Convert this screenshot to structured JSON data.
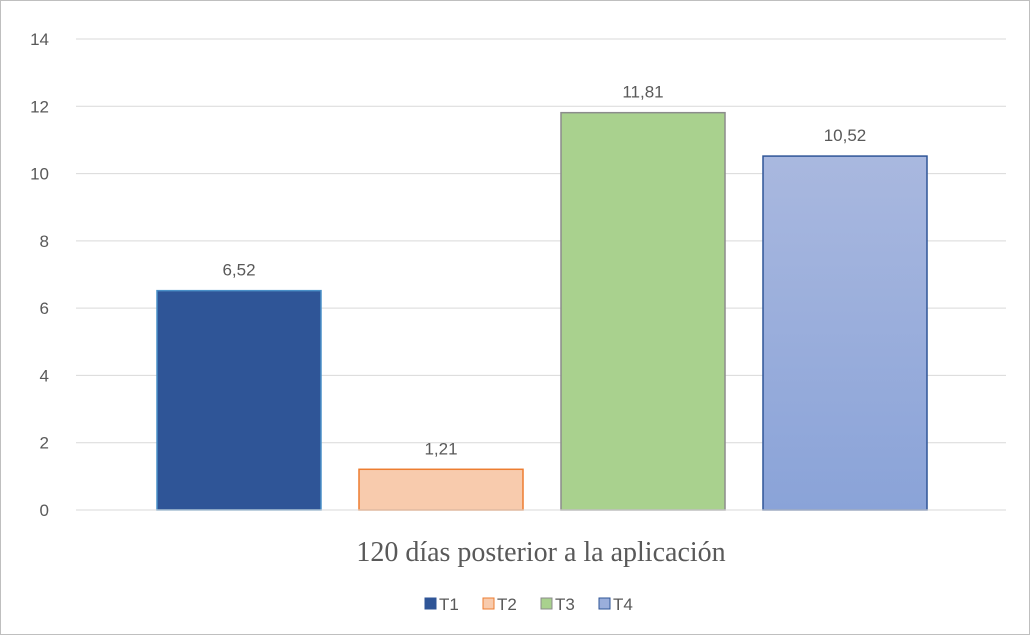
{
  "chart_data": {
    "type": "bar",
    "category_label": "120 días posterior a la aplicación",
    "series": [
      {
        "name": "T1",
        "value": 6.52,
        "label": "6,52",
        "color": "#2f5597"
      },
      {
        "name": "T2",
        "value": 1.21,
        "label": "1,21",
        "color": "#f8cbad",
        "stroke": "#ed7d31"
      },
      {
        "name": "T3",
        "value": 11.81,
        "label": "11,81",
        "color": "#a9d18e"
      },
      {
        "name": "T4",
        "value": 10.52,
        "label": "10,52",
        "color": "#9aaedb"
      }
    ],
    "yticks": [
      "0",
      "2",
      "4",
      "6",
      "8",
      "10",
      "12",
      "14"
    ],
    "ylim": [
      0,
      14
    ],
    "grid": true,
    "legend": "bottom"
  }
}
